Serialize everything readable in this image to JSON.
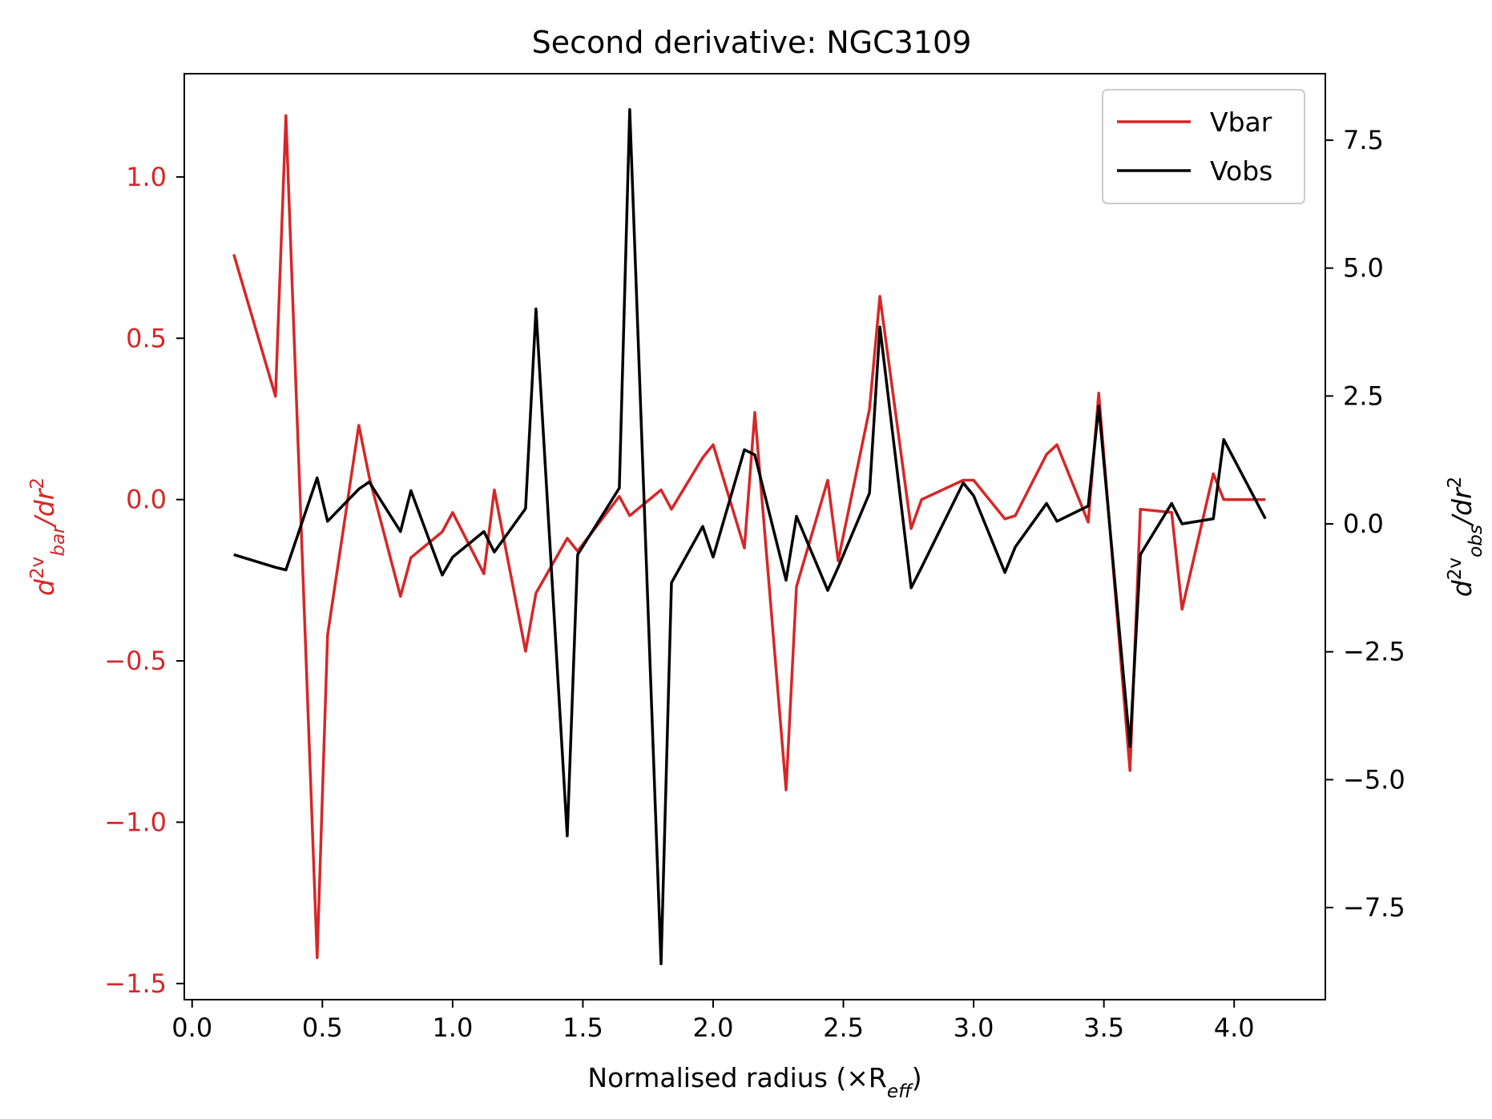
{
  "chart_data": {
    "type": "line",
    "title": "Second derivative: NGC3109",
    "xlabel": "Normalised radius (×R_eff)",
    "ylabel_left": "d^2v_bar/dr^2",
    "ylabel_right": "d^2v_obs/dr^2",
    "xlim": [
      -0.03,
      4.35
    ],
    "ylim_left": [
      -1.55,
      1.32
    ],
    "ylim_right": [
      -9.3,
      8.8
    ],
    "x_ticks": [
      "0.0",
      "0.5",
      "1.0",
      "1.5",
      "2.0",
      "2.5",
      "3.0",
      "3.5",
      "4.0"
    ],
    "x_tick_values": [
      0.0,
      0.5,
      1.0,
      1.5,
      2.0,
      2.5,
      3.0,
      3.5,
      4.0
    ],
    "y_left_ticks": [
      "1.0",
      "0.5",
      "0.0",
      "−0.5",
      "−1.0",
      "−1.5"
    ],
    "y_left_tick_values": [
      1.0,
      0.5,
      0.0,
      -0.5,
      -1.0,
      -1.5
    ],
    "y_right_ticks": [
      "7.5",
      "5.0",
      "2.5",
      "0.0",
      "−2.5",
      "−5.0",
      "−7.5"
    ],
    "y_right_tick_values": [
      7.5,
      5.0,
      2.5,
      0.0,
      -2.5,
      -5.0,
      -7.5
    ],
    "legend_position": "top-right",
    "grid": false,
    "colors": {
      "vbar": "#d62728",
      "vobs": "#000000"
    },
    "series": [
      {
        "name": "Vbar",
        "axis": "left",
        "x": [
          0.16,
          0.32,
          0.36,
          0.48,
          0.52,
          0.64,
          0.68,
          0.8,
          0.84,
          0.96,
          1.0,
          1.12,
          1.16,
          1.28,
          1.32,
          1.44,
          1.48,
          1.64,
          1.68,
          1.8,
          1.84,
          1.96,
          2.0,
          2.12,
          2.16,
          2.28,
          2.32,
          2.44,
          2.48,
          2.6,
          2.64,
          2.76,
          2.8,
          2.96,
          3.0,
          3.12,
          3.16,
          3.28,
          3.32,
          3.44,
          3.48,
          3.6,
          3.64,
          3.76,
          3.8,
          3.92,
          3.96,
          4.12
        ],
        "y": [
          0.76,
          0.32,
          1.19,
          -1.42,
          -0.42,
          0.23,
          0.07,
          -0.3,
          -0.18,
          -0.1,
          -0.04,
          -0.23,
          0.03,
          -0.47,
          -0.29,
          -0.12,
          -0.16,
          0.01,
          -0.05,
          0.03,
          -0.03,
          0.13,
          0.17,
          -0.15,
          0.27,
          -0.9,
          -0.27,
          0.06,
          -0.19,
          0.28,
          0.63,
          -0.09,
          0.0,
          0.06,
          0.06,
          -0.06,
          -0.05,
          0.14,
          0.17,
          -0.07,
          0.33,
          -0.84,
          -0.03,
          -0.04,
          -0.34,
          0.08,
          0.0,
          0.0
        ]
      },
      {
        "name": "Vobs",
        "axis": "right",
        "x": [
          0.16,
          0.32,
          0.36,
          0.48,
          0.52,
          0.64,
          0.68,
          0.8,
          0.84,
          0.96,
          1.0,
          1.12,
          1.16,
          1.28,
          1.32,
          1.44,
          1.48,
          1.64,
          1.68,
          1.8,
          1.84,
          1.96,
          2.0,
          2.12,
          2.16,
          2.28,
          2.32,
          2.44,
          2.48,
          2.6,
          2.64,
          2.76,
          2.8,
          2.96,
          3.0,
          3.12,
          3.16,
          3.28,
          3.32,
          3.44,
          3.48,
          3.6,
          3.64,
          3.76,
          3.8,
          3.92,
          3.96,
          4.12
        ],
        "y": [
          -0.6,
          -0.85,
          -0.9,
          0.9,
          0.05,
          0.68,
          0.82,
          -0.15,
          0.65,
          -1.0,
          -0.65,
          -0.15,
          -0.55,
          0.3,
          4.2,
          -6.1,
          -0.6,
          0.7,
          8.1,
          -8.6,
          -1.15,
          -0.05,
          -0.65,
          1.45,
          1.35,
          -1.1,
          0.15,
          -1.3,
          -0.85,
          0.6,
          3.85,
          -1.25,
          -0.85,
          0.8,
          0.55,
          -0.95,
          -0.45,
          0.4,
          0.05,
          0.35,
          2.3,
          -4.35,
          -0.6,
          0.4,
          0.0,
          0.1,
          1.65,
          0.1
        ]
      }
    ]
  }
}
